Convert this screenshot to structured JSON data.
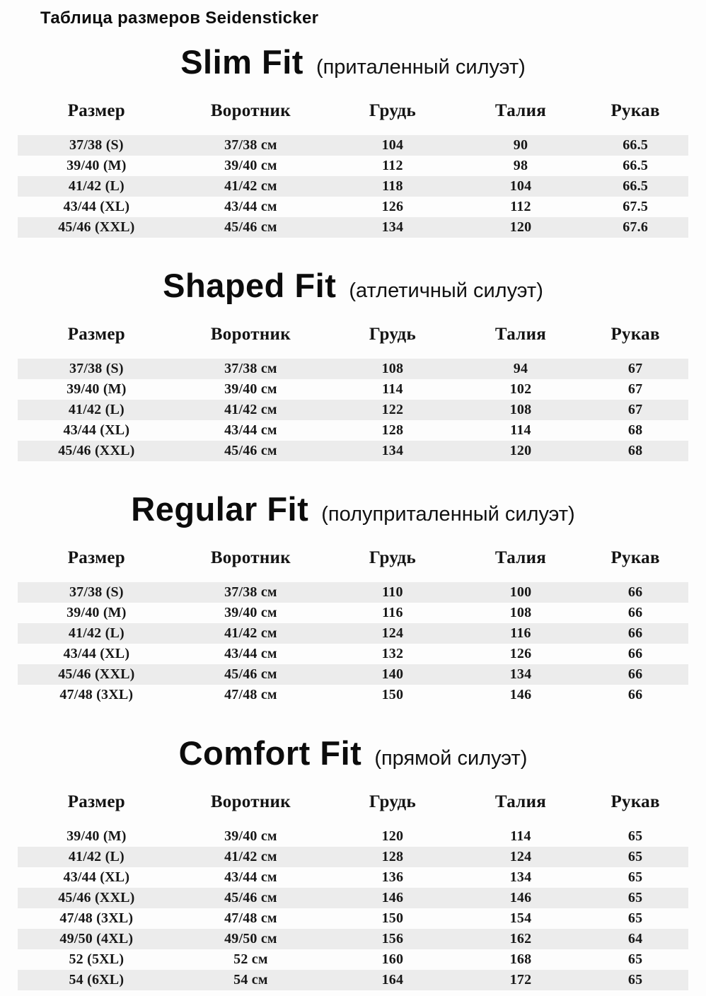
{
  "page": {
    "title": "Таблица размеров Seidensticker"
  },
  "columns": [
    "Размер",
    "Воротник",
    "Грудь",
    "Талия",
    "Рукав"
  ],
  "sections": [
    {
      "title": "Slim Fit",
      "subtitle": "(приталенный силуэт)",
      "first_row_shaded": true,
      "rows": [
        [
          "37/38 (S)",
          "37/38 см",
          "104",
          "90",
          "66.5"
        ],
        [
          "39/40 (M)",
          "39/40 см",
          "112",
          "98",
          "66.5"
        ],
        [
          "41/42 (L)",
          "41/42 см",
          "118",
          "104",
          "66.5"
        ],
        [
          "43/44 (XL)",
          "43/44 см",
          "126",
          "112",
          "67.5"
        ],
        [
          "45/46 (XXL)",
          "45/46 см",
          "134",
          "120",
          "67.6"
        ]
      ]
    },
    {
      "title": "Shaped Fit",
      "subtitle": "(атлетичный силуэт)",
      "first_row_shaded": true,
      "rows": [
        [
          "37/38 (S)",
          "37/38 см",
          "108",
          "94",
          "67"
        ],
        [
          "39/40 (M)",
          "39/40 см",
          "114",
          "102",
          "67"
        ],
        [
          "41/42 (L)",
          "41/42 см",
          "122",
          "108",
          "67"
        ],
        [
          "43/44 (XL)",
          "43/44 см",
          "128",
          "114",
          "68"
        ],
        [
          "45/46 (XXL)",
          "45/46 см",
          "134",
          "120",
          "68"
        ]
      ]
    },
    {
      "title": "Regular Fit",
      "subtitle": "(полуприталенный силуэт)",
      "first_row_shaded": true,
      "rows": [
        [
          "37/38 (S)",
          "37/38 см",
          "110",
          "100",
          "66"
        ],
        [
          "39/40 (M)",
          "39/40 см",
          "116",
          "108",
          "66"
        ],
        [
          "41/42 (L)",
          "41/42 см",
          "124",
          "116",
          "66"
        ],
        [
          "43/44 (XL)",
          "43/44 см",
          "132",
          "126",
          "66"
        ],
        [
          "45/46 (XXL)",
          "45/46 см",
          "140",
          "134",
          "66"
        ],
        [
          "47/48 (3XL)",
          "47/48 см",
          "150",
          "146",
          "66"
        ]
      ]
    },
    {
      "title": "Comfort Fit",
      "subtitle": "(прямой силуэт)",
      "first_row_shaded": false,
      "rows": [
        [
          "39/40 (M)",
          "39/40 см",
          "120",
          "114",
          "65"
        ],
        [
          "41/42 (L)",
          "41/42 см",
          "128",
          "124",
          "65"
        ],
        [
          "43/44 (XL)",
          "43/44 см",
          "136",
          "134",
          "65"
        ],
        [
          "45/46 (XXL)",
          "45/46 см",
          "146",
          "146",
          "65"
        ],
        [
          "47/48 (3XL)",
          "47/48 см",
          "150",
          "154",
          "65"
        ],
        [
          "49/50 (4XL)",
          "49/50 см",
          "156",
          "162",
          "64"
        ],
        [
          "52 (5XL)",
          "52 см",
          "160",
          "168",
          "65"
        ],
        [
          "54 (6XL)",
          "54 см",
          "164",
          "172",
          "65"
        ]
      ]
    }
  ],
  "colors": {
    "stripe": "#ececec",
    "text": "#121212",
    "background": "#fdfdfd"
  }
}
